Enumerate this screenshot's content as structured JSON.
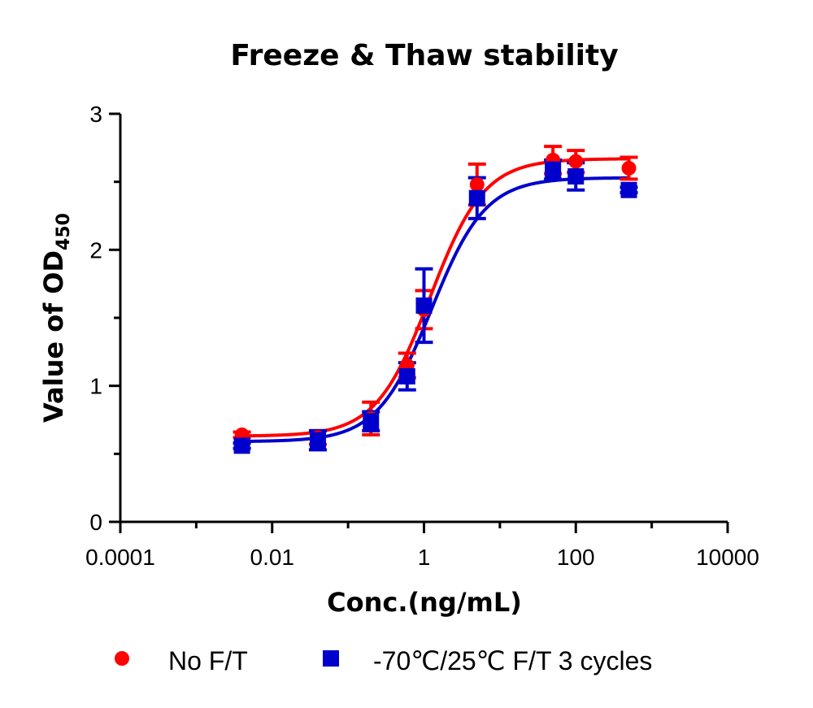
{
  "chart_data": {
    "type": "scatter",
    "title": "Freeze & Thaw stability",
    "xlabel": "Conc.(ng/mL)",
    "ylabel": {
      "main": "Value of OD",
      "sub": "450"
    },
    "x_scale": "log",
    "xlim": [
      0.0001,
      10000
    ],
    "ylim": [
      0,
      3
    ],
    "x_tick_labels": [
      "0.0001",
      "0.01",
      "1",
      "100",
      "10000"
    ],
    "y_tick_labels": [
      "0",
      "1",
      "2",
      "3"
    ],
    "grid": false,
    "legend_position": "bottom",
    "series": [
      {
        "name": "No F/T",
        "color": "#ff0000",
        "marker": "circle",
        "x": [
          0.004,
          0.04,
          0.2,
          0.6,
          1.0,
          5.0,
          50,
          100,
          500
        ],
        "y": [
          0.64,
          0.62,
          0.76,
          1.15,
          1.56,
          2.48,
          2.66,
          2.65,
          2.6
        ],
        "error": [
          0.02,
          0.05,
          0.12,
          0.09,
          0.14,
          0.15,
          0.1,
          0.08,
          0.08
        ],
        "fit": {
          "bottom": 0.63,
          "top": 2.67,
          "ec50": 1.2,
          "hill": 1.22
        }
      },
      {
        "name": "-70℃/25℃ F/T 3 cycles",
        "color": "#0000cc",
        "marker": "square",
        "x": [
          0.004,
          0.04,
          0.2,
          0.6,
          1.0,
          5.0,
          50,
          100,
          500
        ],
        "y": [
          0.56,
          0.6,
          0.74,
          1.07,
          1.59,
          2.38,
          2.59,
          2.54,
          2.44
        ],
        "error": [
          0.02,
          0.07,
          0.07,
          0.1,
          0.27,
          0.15,
          0.07,
          0.1,
          0.02
        ],
        "fit": {
          "bottom": 0.59,
          "top": 2.53,
          "ec50": 1.25,
          "hill": 1.22
        }
      }
    ]
  }
}
